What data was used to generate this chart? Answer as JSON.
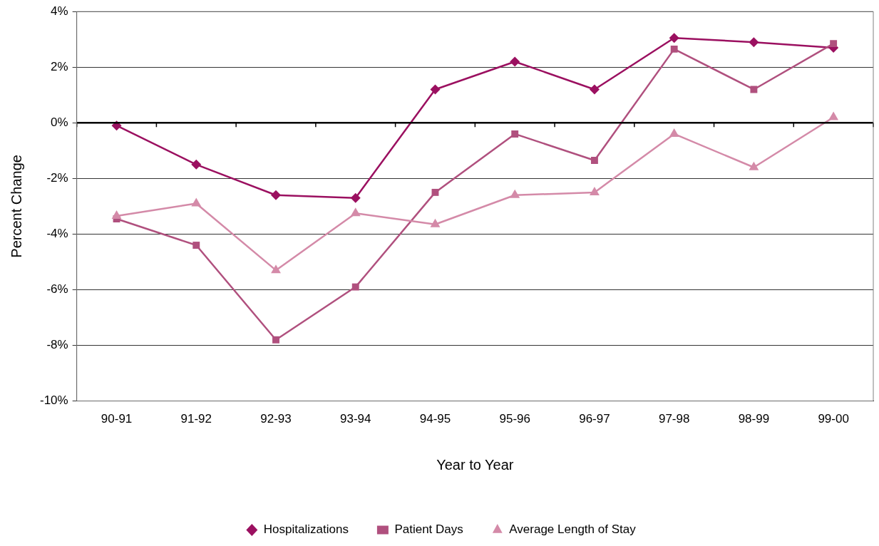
{
  "chart_data": {
    "type": "line",
    "xlabel": "Year to Year",
    "ylabel": "Percent Change",
    "categories": [
      "90-91",
      "91-92",
      "92-93",
      "93-94",
      "94-95",
      "95-96",
      "96-97",
      "97-98",
      "98-99",
      "99-00"
    ],
    "series": [
      {
        "name": "Hospitalizations",
        "color": "#9b1060",
        "marker": "diamond",
        "values": [
          -0.1,
          -1.5,
          -2.6,
          -2.7,
          1.2,
          2.2,
          1.2,
          3.05,
          2.9,
          2.7
        ]
      },
      {
        "name": "Patient Days",
        "color": "#b0507e",
        "marker": "square",
        "values": [
          -3.45,
          -4.4,
          -7.8,
          -5.9,
          -2.5,
          -0.4,
          -1.35,
          2.65,
          1.2,
          2.85
        ]
      },
      {
        "name": "Average Length of Stay",
        "color": "#d48aa8",
        "marker": "triangle",
        "values": [
          -3.35,
          -2.9,
          -5.3,
          -3.25,
          -3.65,
          -2.6,
          -2.5,
          -0.4,
          -1.6,
          0.2
        ]
      }
    ],
    "ylim": [
      -10,
      4
    ],
    "yticks": [
      {
        "value": -10,
        "label": "-10%"
      },
      {
        "value": -8,
        "label": "-8%"
      },
      {
        "value": -6,
        "label": "-6%"
      },
      {
        "value": -4,
        "label": "-4%"
      },
      {
        "value": -2,
        "label": "-2%"
      },
      {
        "value": 0,
        "label": "0%"
      },
      {
        "value": 2,
        "label": "2%"
      },
      {
        "value": 4,
        "label": "4%"
      }
    ],
    "ref_lines": [
      {
        "axis": "y",
        "value": 0,
        "color": "#000000"
      }
    ],
    "grid": "y",
    "legend": "bottom",
    "line_style": "solid"
  }
}
